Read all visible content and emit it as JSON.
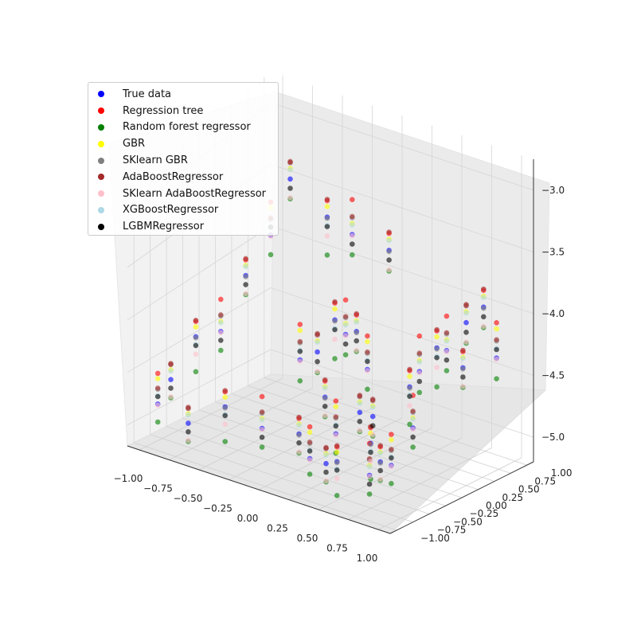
{
  "chart_data": {
    "type": "scatter",
    "projection": "3d",
    "title": "",
    "xlabel": "",
    "ylabel": "",
    "zlabel": "",
    "xlim": [
      -1.1,
      1.1
    ],
    "ylim": [
      -1.1,
      1.1
    ],
    "zlim": [
      -5.2,
      -2.75
    ],
    "x_ticks": [
      "−1.00",
      "−0.75",
      "−0.50",
      "−0.25",
      "0.00",
      "0.25",
      "0.50",
      "0.75",
      "1.00"
    ],
    "y_ticks": [
      "−1.00",
      "−0.75",
      "−0.50",
      "−0.25",
      "0.00",
      "0.25",
      "0.50",
      "0.75",
      "1.00"
    ],
    "z_ticks": [
      "−5.0",
      "−4.5",
      "−4.0",
      "−3.5",
      "−3.0"
    ],
    "grid": true,
    "legend_position": "upper-left",
    "series": [
      {
        "name": "True data",
        "color": "#0000ff"
      },
      {
        "name": "Regression tree",
        "color": "#ff0000"
      },
      {
        "name": "Random forest regressor",
        "color": "#008000"
      },
      {
        "name": "GBR",
        "color": "#ffff00"
      },
      {
        "name": "SKlearn GBR",
        "color": "#808080"
      },
      {
        "name": "AdaBoostRegressor",
        "color": "#a52a2a"
      },
      {
        "name": "SKlearn AdaBoostRegressor",
        "color": "#ffc0cb"
      },
      {
        "name": "XGBoostRegressor",
        "color": "#add8e6"
      },
      {
        "name": "LGBMRegressor",
        "color": "#000000"
      }
    ],
    "sample_points": [
      [
        -0.9,
        -1.0,
        -4.7
      ],
      [
        -0.9,
        -0.8,
        -4.6
      ],
      [
        -0.8,
        -0.6,
        -4.3
      ],
      [
        -0.7,
        -0.4,
        -4.2
      ],
      [
        -0.6,
        -0.2,
        -3.8
      ],
      [
        -0.5,
        0.0,
        -3.4
      ],
      [
        -0.5,
        0.3,
        -3.1
      ],
      [
        -0.3,
        0.5,
        -3.5
      ],
      [
        -0.2,
        0.7,
        -3.6
      ],
      [
        0.0,
        0.9,
        -3.8
      ],
      [
        -0.8,
        1.0,
        -4.9
      ],
      [
        -0.6,
        0.9,
        -4.8
      ],
      [
        -0.4,
        0.8,
        -4.5
      ],
      [
        -0.2,
        0.6,
        -4.4
      ],
      [
        0.0,
        0.4,
        -4.3
      ],
      [
        0.2,
        0.2,
        -4.4
      ],
      [
        0.3,
        -0.1,
        -4.7
      ],
      [
        0.5,
        -0.3,
        -4.9
      ],
      [
        0.6,
        -0.5,
        -5.0
      ],
      [
        0.8,
        -0.7,
        -4.8
      ],
      [
        1.0,
        -0.9,
        -4.6
      ],
      [
        -0.7,
        -0.9,
        -4.9
      ],
      [
        -0.5,
        -0.7,
        -4.8
      ],
      [
        -0.3,
        -0.5,
        -4.9
      ],
      [
        -0.1,
        -0.3,
        -5.0
      ],
      [
        0.1,
        -0.1,
        -4.9
      ],
      [
        0.3,
        0.1,
        -4.8
      ],
      [
        0.5,
        0.3,
        -4.6
      ],
      [
        0.7,
        0.5,
        -4.2
      ],
      [
        0.9,
        0.7,
        -3.9
      ],
      [
        0.9,
        0.9,
        -4.3
      ],
      [
        0.7,
        0.8,
        -4.1
      ],
      [
        0.4,
        0.9,
        -4.5
      ],
      [
        0.2,
        1.0,
        -4.7
      ],
      [
        -0.1,
        0.1,
        -4.8
      ],
      [
        0.1,
        -0.5,
        -5.0
      ],
      [
        0.4,
        -0.8,
        -4.9
      ],
      [
        0.6,
        -1.0,
        -4.8
      ],
      [
        0.8,
        -0.2,
        -4.6
      ],
      [
        1.0,
        0.2,
        -4.2
      ]
    ],
    "sample_offsets": [
      0.0,
      0.2,
      -0.2,
      0.12,
      0.08,
      0.15,
      -0.1,
      0.05,
      -0.05
    ]
  }
}
